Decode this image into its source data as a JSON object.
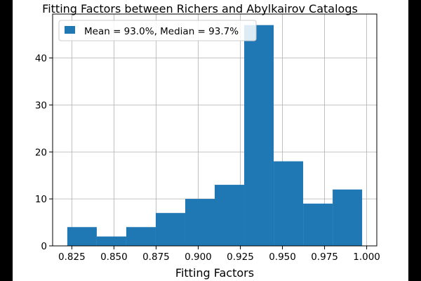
{
  "chart_data": {
    "type": "bar",
    "title": "Fitting Factors between Richers and Abylkairov Catalogs",
    "xlabel": "Fitting Factors",
    "ylabel": "",
    "bin_edges": [
      0.8223,
      0.8398,
      0.8573,
      0.8748,
      0.8923,
      0.9098,
      0.9273,
      0.9448,
      0.9623,
      0.9798,
      0.9973
    ],
    "values": [
      4,
      2,
      4,
      7,
      10,
      13,
      47,
      18,
      9,
      12
    ],
    "xlim": [
      0.8136,
      1.006
    ],
    "ylim": [
      0,
      49.35
    ],
    "xticks": [
      0.825,
      0.85,
      0.875,
      0.9,
      0.925,
      0.95,
      0.975,
      1.0
    ],
    "xtick_labels": [
      "0.825",
      "0.850",
      "0.875",
      "0.900",
      "0.925",
      "0.950",
      "0.975",
      "1.000"
    ],
    "yticks": [
      0,
      10,
      20,
      30,
      40
    ],
    "ytick_labels": [
      "0",
      "10",
      "20",
      "30",
      "40"
    ],
    "grid": true,
    "legend": {
      "placement": "upper-left",
      "entries": [
        {
          "label": "Mean = 93.0%, Median = 93.7%",
          "color": "#1f77b4"
        }
      ]
    },
    "bar_color": "#1f77b4"
  }
}
